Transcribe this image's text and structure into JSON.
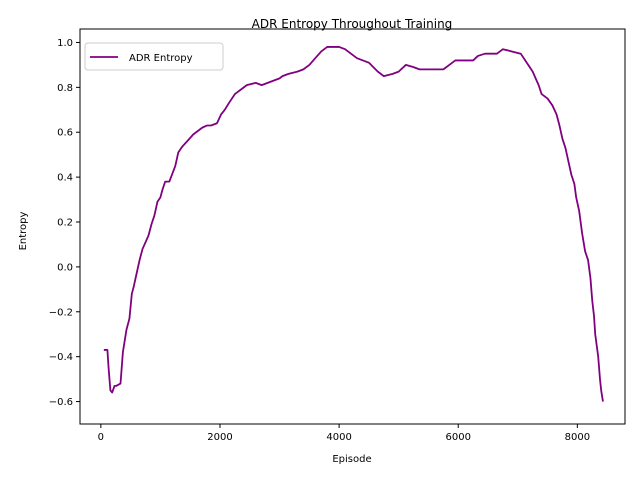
{
  "chart_data": {
    "type": "line",
    "title": "ADR Entropy Throughout Training",
    "xlabel": "Episode",
    "ylabel": "Entropy",
    "xlim": [
      -350,
      8800
    ],
    "ylim": [
      -0.7,
      1.06
    ],
    "xticks": [
      0,
      2000,
      4000,
      6000,
      8000
    ],
    "yticks": [
      -0.6,
      -0.4,
      -0.2,
      0.0,
      0.2,
      0.4,
      0.6,
      0.8,
      1.0
    ],
    "xtick_labels": [
      "0",
      "2000",
      "4000",
      "6000",
      "8000"
    ],
    "ytick_labels": [
      "−0.6",
      "−0.4",
      "−0.2",
      "0.0",
      "0.2",
      "0.4",
      "0.6",
      "0.8",
      "1.0"
    ],
    "grid": false,
    "legend_position": "upper-left",
    "colors": {
      "line": "#800080"
    },
    "series": [
      {
        "name": "ADR Entropy",
        "x": [
          50,
          110,
          130,
          160,
          190,
          230,
          260,
          330,
          370,
          430,
          480,
          520,
          550,
          600,
          650,
          700,
          750,
          800,
          850,
          900,
          950,
          1000,
          1030,
          1080,
          1150,
          1250,
          1300,
          1350,
          1380,
          1450,
          1550,
          1600,
          1700,
          1780,
          1850,
          1950,
          2020,
          2080,
          2150,
          2250,
          2350,
          2450,
          2600,
          2700,
          2800,
          2900,
          3000,
          3050,
          3150,
          3300,
          3400,
          3500,
          3600,
          3700,
          3800,
          3900,
          4000,
          4100,
          4200,
          4300,
          4500,
          4650,
          4750,
          4900,
          5000,
          5120,
          5250,
          5350,
          5500,
          5750,
          5850,
          5950,
          6100,
          6250,
          6330,
          6450,
          6550,
          6650,
          6750,
          6900,
          7050,
          7150,
          7250,
          7350,
          7400,
          7500,
          7580,
          7650,
          7700,
          7750,
          7800,
          7850,
          7900,
          7950,
          7980,
          8030,
          8080,
          8130,
          8180,
          8220,
          8250,
          8280,
          8300,
          8350,
          8380,
          8400,
          8430
        ],
        "values": [
          -0.37,
          -0.37,
          -0.45,
          -0.55,
          -0.56,
          -0.53,
          -0.53,
          -0.52,
          -0.38,
          -0.28,
          -0.23,
          -0.12,
          -0.09,
          -0.03,
          0.03,
          0.08,
          0.11,
          0.14,
          0.19,
          0.23,
          0.29,
          0.31,
          0.34,
          0.38,
          0.38,
          0.45,
          0.51,
          0.53,
          0.54,
          0.56,
          0.59,
          0.6,
          0.62,
          0.63,
          0.63,
          0.64,
          0.68,
          0.7,
          0.73,
          0.77,
          0.79,
          0.81,
          0.82,
          0.81,
          0.82,
          0.83,
          0.84,
          0.85,
          0.86,
          0.87,
          0.88,
          0.9,
          0.93,
          0.96,
          0.98,
          0.98,
          0.98,
          0.97,
          0.95,
          0.93,
          0.91,
          0.87,
          0.85,
          0.86,
          0.87,
          0.9,
          0.89,
          0.88,
          0.88,
          0.88,
          0.9,
          0.92,
          0.92,
          0.92,
          0.94,
          0.95,
          0.95,
          0.95,
          0.97,
          0.96,
          0.95,
          0.91,
          0.87,
          0.81,
          0.77,
          0.75,
          0.72,
          0.68,
          0.63,
          0.57,
          0.53,
          0.47,
          0.41,
          0.37,
          0.31,
          0.25,
          0.15,
          0.07,
          0.03,
          -0.05,
          -0.15,
          -0.22,
          -0.3,
          -0.4,
          -0.5,
          -0.55,
          -0.6
        ]
      }
    ]
  }
}
